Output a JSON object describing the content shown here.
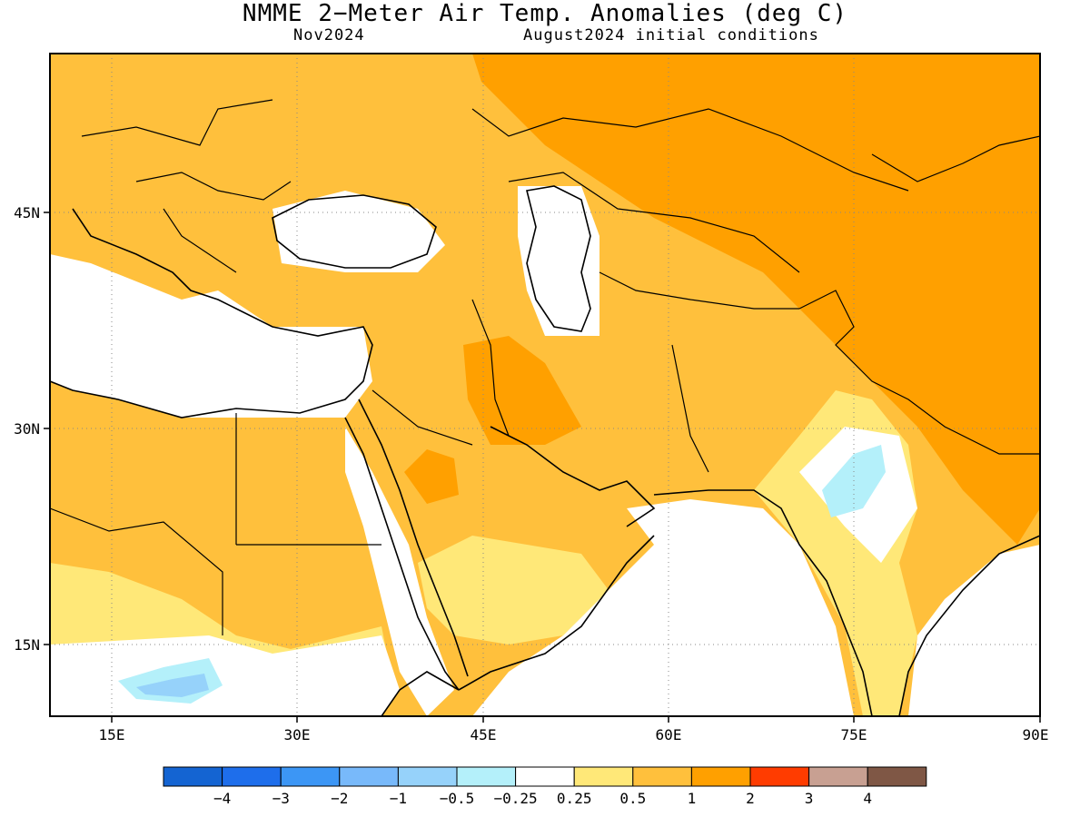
{
  "title": "NMME 2−Meter Air Temp. Anomalies (deg C)",
  "subtitle_left": "Nov2024",
  "subtitle_right": "August2024 initial conditions",
  "map": {
    "lon_range": [
      10,
      90
    ],
    "lat_range": [
      10,
      56
    ],
    "lon_ticks": [
      "15E",
      "30E",
      "45E",
      "60E",
      "75E",
      "90E"
    ],
    "lat_ticks": [
      "45N",
      "30N",
      "15N"
    ]
  },
  "colorbar": {
    "colors": [
      "#1464d2",
      "#1e6eeb",
      "#3c96f5",
      "#78b9fa",
      "#96d2fa",
      "#b4f0fa",
      "#ffffff",
      "#ffe878",
      "#ffc03c",
      "#ffa000",
      "#ff3c00",
      "#c8a092",
      "#7f5745"
    ],
    "labels": [
      "−4",
      "−3",
      "−2",
      "−1",
      "−0.5",
      "−0.25",
      "0.25",
      "0.5",
      "1",
      "2",
      "3",
      "4"
    ]
  }
}
